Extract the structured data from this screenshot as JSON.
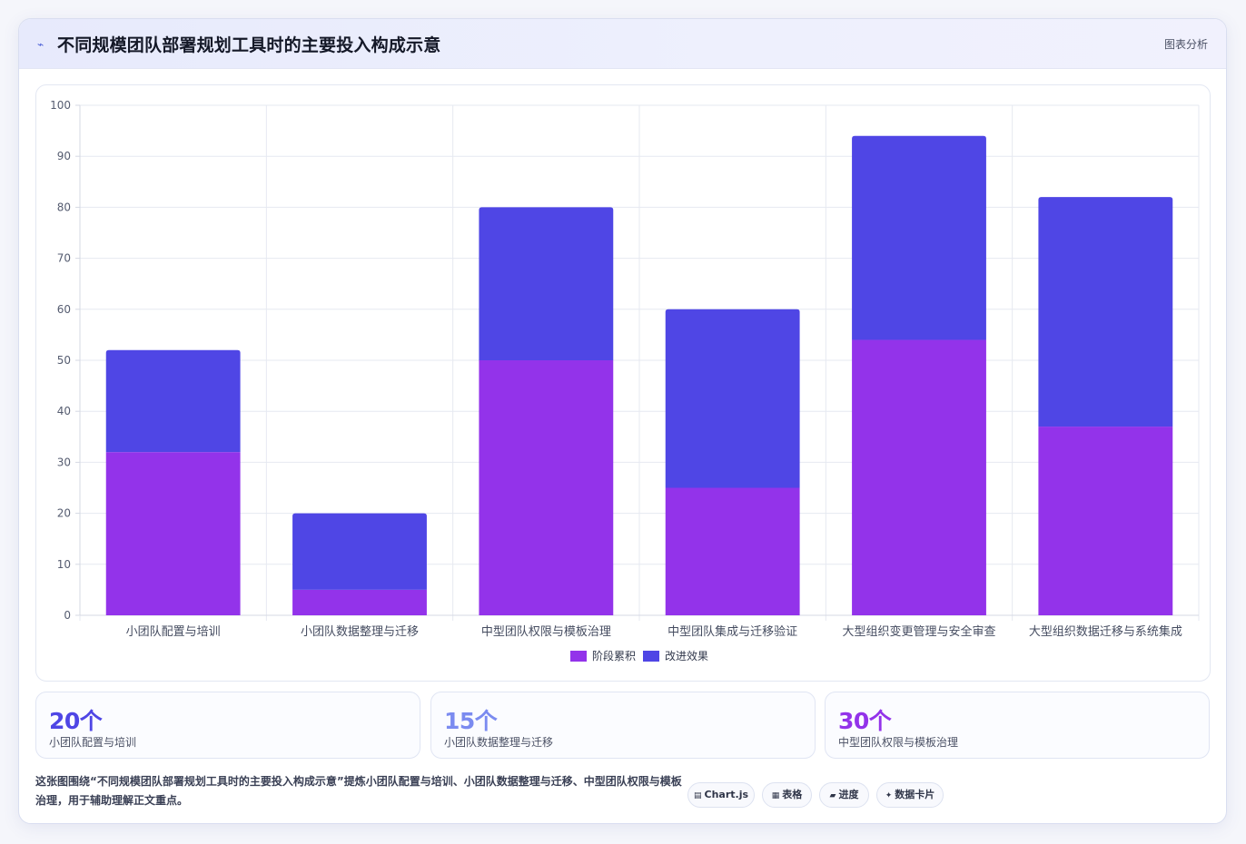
{
  "header": {
    "icon": "sparkline-icon",
    "title": "不同规模团队部署规划工具时的主要投入构成示意",
    "tag": "图表分析"
  },
  "chart_data": {
    "type": "bar",
    "stacked": true,
    "categories": [
      "小团队配置与培训",
      "小团队数据整理与迁移",
      "中型团队权限与模板治理",
      "中型团队集成与迁移验证",
      "大型组织变更管理与安全审查",
      "大型组织数据迁移与系统集成"
    ],
    "series": [
      {
        "name": "阶段累积",
        "color": "#9333ea",
        "values": [
          32,
          5,
          50,
          25,
          54,
          37
        ]
      },
      {
        "name": "改进效果",
        "color": "#4f46e5",
        "values": [
          20,
          15,
          30,
          35,
          40,
          45
        ]
      }
    ],
    "ylim": [
      0,
      100
    ],
    "yticks": [
      0,
      10,
      20,
      30,
      40,
      50,
      60,
      70,
      80,
      90,
      100
    ],
    "grid": true,
    "legend": "bottom"
  },
  "stats": [
    {
      "value": "20个",
      "label": "小团队配置与培训",
      "color": "#4f46e5"
    },
    {
      "value": "15个",
      "label": "小团队数据整理与迁移",
      "color": "#7b8bf0"
    },
    {
      "value": "30个",
      "label": "中型团队权限与模板治理",
      "color": "#9333ea"
    }
  ],
  "footer": {
    "text": "这张图围绕“不同规模团队部署规划工具时的主要投入构成示意”提炼小团队配置与培训、小团队数据整理与迁移、中型团队权限与模板治理，用于辅助理解正文重点。",
    "chips": [
      {
        "icon": "table-icon",
        "glyph": "▤",
        "label": "Chart.js"
      },
      {
        "icon": "grid-icon",
        "glyph": "▦",
        "label": "表格"
      },
      {
        "icon": "progress-icon",
        "glyph": "▰",
        "label": "进度"
      },
      {
        "icon": "sparkle-icon",
        "glyph": "✦",
        "label": "数据卡片"
      }
    ]
  }
}
